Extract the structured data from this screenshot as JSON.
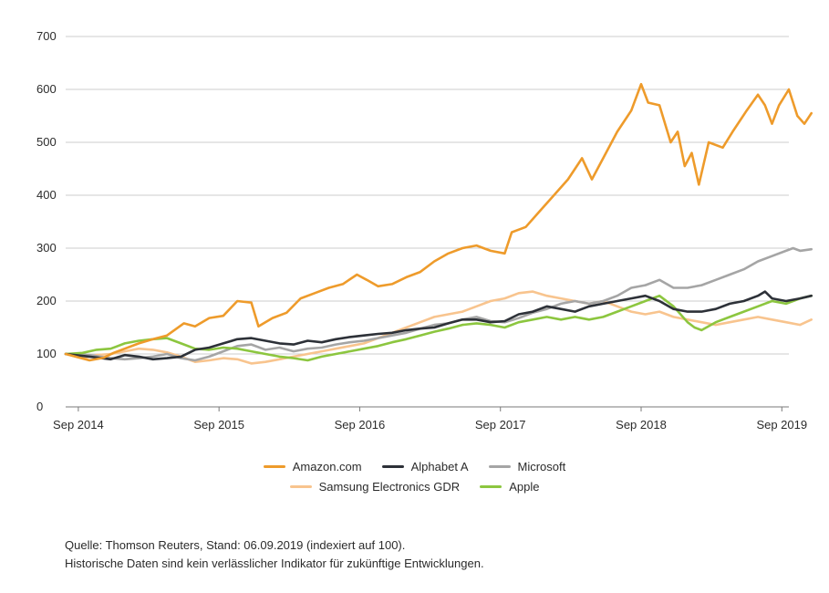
{
  "chart_data": {
    "type": "line",
    "title": "",
    "xlabel": "",
    "ylabel": "",
    "ylim": [
      0,
      700
    ],
    "yticks": [
      0,
      100,
      200,
      300,
      400,
      500,
      600,
      700
    ],
    "xlim": [
      2014.58,
      2019.72
    ],
    "xticks": [
      {
        "value": 2014.67,
        "label": "Sep 2014"
      },
      {
        "value": 2015.67,
        "label": "Sep 2015"
      },
      {
        "value": 2016.67,
        "label": "Sep 2016"
      },
      {
        "value": 2017.67,
        "label": "Sep 2017"
      },
      {
        "value": 2018.67,
        "label": "Sep 2018"
      },
      {
        "value": 2019.67,
        "label": "Sep 2019"
      }
    ],
    "grid": true,
    "legend_position": "bottom",
    "series": [
      {
        "name": "Amazon.com",
        "color": "#EE9B2B",
        "points": [
          [
            2014.58,
            100
          ],
          [
            2014.75,
            88
          ],
          [
            2014.85,
            93
          ],
          [
            2014.92,
            102
          ],
          [
            2015.0,
            110
          ],
          [
            2015.1,
            120
          ],
          [
            2015.2,
            128
          ],
          [
            2015.3,
            135
          ],
          [
            2015.42,
            158
          ],
          [
            2015.5,
            152
          ],
          [
            2015.6,
            168
          ],
          [
            2015.7,
            172
          ],
          [
            2015.8,
            200
          ],
          [
            2015.9,
            197
          ],
          [
            2015.95,
            152
          ],
          [
            2016.05,
            168
          ],
          [
            2016.15,
            178
          ],
          [
            2016.25,
            205
          ],
          [
            2016.35,
            215
          ],
          [
            2016.45,
            225
          ],
          [
            2016.55,
            232
          ],
          [
            2016.65,
            250
          ],
          [
            2016.72,
            240
          ],
          [
            2016.8,
            228
          ],
          [
            2016.9,
            232
          ],
          [
            2017.0,
            245
          ],
          [
            2017.1,
            255
          ],
          [
            2017.2,
            275
          ],
          [
            2017.3,
            290
          ],
          [
            2017.4,
            300
          ],
          [
            2017.5,
            305
          ],
          [
            2017.6,
            295
          ],
          [
            2017.7,
            290
          ],
          [
            2017.75,
            330
          ],
          [
            2017.85,
            340
          ],
          [
            2017.95,
            370
          ],
          [
            2018.05,
            400
          ],
          [
            2018.15,
            430
          ],
          [
            2018.25,
            470
          ],
          [
            2018.32,
            430
          ],
          [
            2018.4,
            470
          ],
          [
            2018.5,
            520
          ],
          [
            2018.6,
            560
          ],
          [
            2018.67,
            610
          ],
          [
            2018.72,
            575
          ],
          [
            2018.8,
            570
          ],
          [
            2018.88,
            500
          ],
          [
            2018.93,
            520
          ],
          [
            2018.98,
            455
          ],
          [
            2019.03,
            480
          ],
          [
            2019.08,
            420
          ],
          [
            2019.15,
            500
          ],
          [
            2019.25,
            490
          ],
          [
            2019.32,
            520
          ],
          [
            2019.42,
            560
          ],
          [
            2019.5,
            590
          ],
          [
            2019.55,
            570
          ],
          [
            2019.6,
            535
          ],
          [
            2019.65,
            570
          ],
          [
            2019.72,
            600
          ],
          [
            2019.78,
            550
          ],
          [
            2019.83,
            535
          ],
          [
            2019.88,
            555
          ]
        ]
      },
      {
        "name": "Alphabet A",
        "color": "#2D3138",
        "points": [
          [
            2014.58,
            100
          ],
          [
            2014.75,
            95
          ],
          [
            2014.9,
            90
          ],
          [
            2015.0,
            98
          ],
          [
            2015.1,
            95
          ],
          [
            2015.2,
            90
          ],
          [
            2015.3,
            92
          ],
          [
            2015.4,
            95
          ],
          [
            2015.5,
            108
          ],
          [
            2015.6,
            112
          ],
          [
            2015.7,
            120
          ],
          [
            2015.8,
            128
          ],
          [
            2015.9,
            130
          ],
          [
            2016.0,
            125
          ],
          [
            2016.1,
            120
          ],
          [
            2016.2,
            118
          ],
          [
            2016.3,
            125
          ],
          [
            2016.4,
            122
          ],
          [
            2016.5,
            128
          ],
          [
            2016.6,
            132
          ],
          [
            2016.7,
            135
          ],
          [
            2016.8,
            138
          ],
          [
            2016.9,
            140
          ],
          [
            2017.0,
            145
          ],
          [
            2017.1,
            148
          ],
          [
            2017.2,
            150
          ],
          [
            2017.3,
            158
          ],
          [
            2017.4,
            165
          ],
          [
            2017.5,
            165
          ],
          [
            2017.6,
            160
          ],
          [
            2017.7,
            162
          ],
          [
            2017.8,
            175
          ],
          [
            2017.9,
            180
          ],
          [
            2018.0,
            190
          ],
          [
            2018.1,
            185
          ],
          [
            2018.2,
            180
          ],
          [
            2018.3,
            190
          ],
          [
            2018.4,
            195
          ],
          [
            2018.5,
            200
          ],
          [
            2018.6,
            205
          ],
          [
            2018.7,
            210
          ],
          [
            2018.8,
            200
          ],
          [
            2018.9,
            185
          ],
          [
            2019.0,
            180
          ],
          [
            2019.1,
            180
          ],
          [
            2019.2,
            185
          ],
          [
            2019.3,
            195
          ],
          [
            2019.4,
            200
          ],
          [
            2019.5,
            210
          ],
          [
            2019.55,
            218
          ],
          [
            2019.6,
            205
          ],
          [
            2019.7,
            200
          ],
          [
            2019.8,
            205
          ],
          [
            2019.88,
            210
          ]
        ]
      },
      {
        "name": "Microsoft",
        "color": "#A5A5A5",
        "points": [
          [
            2014.58,
            100
          ],
          [
            2014.75,
            98
          ],
          [
            2014.9,
            92
          ],
          [
            2015.0,
            90
          ],
          [
            2015.1,
            92
          ],
          [
            2015.2,
            95
          ],
          [
            2015.3,
            100
          ],
          [
            2015.4,
            92
          ],
          [
            2015.5,
            88
          ],
          [
            2015.6,
            95
          ],
          [
            2015.7,
            105
          ],
          [
            2015.8,
            115
          ],
          [
            2015.9,
            118
          ],
          [
            2016.0,
            108
          ],
          [
            2016.1,
            112
          ],
          [
            2016.2,
            105
          ],
          [
            2016.3,
            110
          ],
          [
            2016.4,
            112
          ],
          [
            2016.5,
            118
          ],
          [
            2016.6,
            122
          ],
          [
            2016.7,
            125
          ],
          [
            2016.8,
            130
          ],
          [
            2016.9,
            135
          ],
          [
            2017.0,
            140
          ],
          [
            2017.1,
            148
          ],
          [
            2017.2,
            155
          ],
          [
            2017.3,
            158
          ],
          [
            2017.4,
            165
          ],
          [
            2017.5,
            170
          ],
          [
            2017.6,
            162
          ],
          [
            2017.7,
            160
          ],
          [
            2017.8,
            168
          ],
          [
            2017.9,
            178
          ],
          [
            2018.0,
            185
          ],
          [
            2018.1,
            195
          ],
          [
            2018.2,
            200
          ],
          [
            2018.3,
            195
          ],
          [
            2018.4,
            200
          ],
          [
            2018.5,
            210
          ],
          [
            2018.6,
            225
          ],
          [
            2018.7,
            230
          ],
          [
            2018.8,
            240
          ],
          [
            2018.9,
            225
          ],
          [
            2019.0,
            225
          ],
          [
            2019.1,
            230
          ],
          [
            2019.2,
            240
          ],
          [
            2019.3,
            250
          ],
          [
            2019.4,
            260
          ],
          [
            2019.5,
            275
          ],
          [
            2019.6,
            285
          ],
          [
            2019.7,
            295
          ],
          [
            2019.75,
            300
          ],
          [
            2019.8,
            295
          ],
          [
            2019.88,
            298
          ]
        ]
      },
      {
        "name": "Samsung Electronics GDR",
        "color": "#F8C48E",
        "points": [
          [
            2014.58,
            100
          ],
          [
            2014.7,
            92
          ],
          [
            2014.8,
            98
          ],
          [
            2014.9,
            100
          ],
          [
            2015.0,
            105
          ],
          [
            2015.1,
            110
          ],
          [
            2015.2,
            108
          ],
          [
            2015.3,
            103
          ],
          [
            2015.4,
            95
          ],
          [
            2015.5,
            85
          ],
          [
            2015.6,
            88
          ],
          [
            2015.7,
            92
          ],
          [
            2015.8,
            90
          ],
          [
            2015.9,
            82
          ],
          [
            2016.0,
            85
          ],
          [
            2016.1,
            90
          ],
          [
            2016.2,
            95
          ],
          [
            2016.3,
            100
          ],
          [
            2016.4,
            105
          ],
          [
            2016.5,
            110
          ],
          [
            2016.6,
            115
          ],
          [
            2016.7,
            120
          ],
          [
            2016.8,
            130
          ],
          [
            2016.9,
            140
          ],
          [
            2017.0,
            150
          ],
          [
            2017.1,
            160
          ],
          [
            2017.2,
            170
          ],
          [
            2017.3,
            175
          ],
          [
            2017.4,
            180
          ],
          [
            2017.5,
            190
          ],
          [
            2017.6,
            200
          ],
          [
            2017.7,
            205
          ],
          [
            2017.8,
            215
          ],
          [
            2017.9,
            218
          ],
          [
            2018.0,
            210
          ],
          [
            2018.1,
            205
          ],
          [
            2018.2,
            200
          ],
          [
            2018.3,
            195
          ],
          [
            2018.4,
            200
          ],
          [
            2018.5,
            190
          ],
          [
            2018.6,
            180
          ],
          [
            2018.7,
            175
          ],
          [
            2018.8,
            180
          ],
          [
            2018.9,
            170
          ],
          [
            2019.0,
            165
          ],
          [
            2019.1,
            160
          ],
          [
            2019.2,
            155
          ],
          [
            2019.3,
            160
          ],
          [
            2019.4,
            165
          ],
          [
            2019.5,
            170
          ],
          [
            2019.6,
            165
          ],
          [
            2019.7,
            160
          ],
          [
            2019.8,
            155
          ],
          [
            2019.88,
            165
          ]
        ]
      },
      {
        "name": "Apple",
        "color": "#8CC63F",
        "points": [
          [
            2014.58,
            100
          ],
          [
            2014.7,
            102
          ],
          [
            2014.8,
            108
          ],
          [
            2014.9,
            110
          ],
          [
            2015.0,
            120
          ],
          [
            2015.1,
            125
          ],
          [
            2015.2,
            128
          ],
          [
            2015.3,
            130
          ],
          [
            2015.4,
            120
          ],
          [
            2015.5,
            110
          ],
          [
            2015.6,
            108
          ],
          [
            2015.7,
            112
          ],
          [
            2015.8,
            110
          ],
          [
            2015.9,
            105
          ],
          [
            2016.0,
            100
          ],
          [
            2016.1,
            95
          ],
          [
            2016.2,
            92
          ],
          [
            2016.3,
            88
          ],
          [
            2016.4,
            95
          ],
          [
            2016.5,
            100
          ],
          [
            2016.6,
            105
          ],
          [
            2016.7,
            110
          ],
          [
            2016.8,
            115
          ],
          [
            2016.9,
            122
          ],
          [
            2017.0,
            128
          ],
          [
            2017.1,
            135
          ],
          [
            2017.2,
            142
          ],
          [
            2017.3,
            148
          ],
          [
            2017.4,
            155
          ],
          [
            2017.5,
            158
          ],
          [
            2017.6,
            155
          ],
          [
            2017.7,
            150
          ],
          [
            2017.8,
            160
          ],
          [
            2017.9,
            165
          ],
          [
            2018.0,
            170
          ],
          [
            2018.1,
            165
          ],
          [
            2018.2,
            170
          ],
          [
            2018.3,
            165
          ],
          [
            2018.4,
            170
          ],
          [
            2018.5,
            180
          ],
          [
            2018.6,
            190
          ],
          [
            2018.7,
            200
          ],
          [
            2018.8,
            210
          ],
          [
            2018.9,
            190
          ],
          [
            2019.0,
            160
          ],
          [
            2019.05,
            150
          ],
          [
            2019.1,
            145
          ],
          [
            2019.2,
            160
          ],
          [
            2019.3,
            170
          ],
          [
            2019.4,
            180
          ],
          [
            2019.5,
            190
          ],
          [
            2019.6,
            200
          ],
          [
            2019.7,
            195
          ],
          [
            2019.8,
            205
          ],
          [
            2019.88,
            210
          ]
        ]
      }
    ]
  },
  "legend": {
    "items": [
      "Amazon.com",
      "Alphabet A",
      "Microsoft",
      "Samsung Electronics GDR",
      "Apple"
    ],
    "colors": [
      "#EE9B2B",
      "#2D3138",
      "#A5A5A5",
      "#F8C48E",
      "#8CC63F"
    ]
  },
  "footnote": {
    "line1": "Quelle: Thomson Reuters, Stand: 06.09.2019 (indexiert auf 100).",
    "line2": "Historische Daten sind kein verlässlicher Indikator für zukünftige Entwicklungen."
  }
}
